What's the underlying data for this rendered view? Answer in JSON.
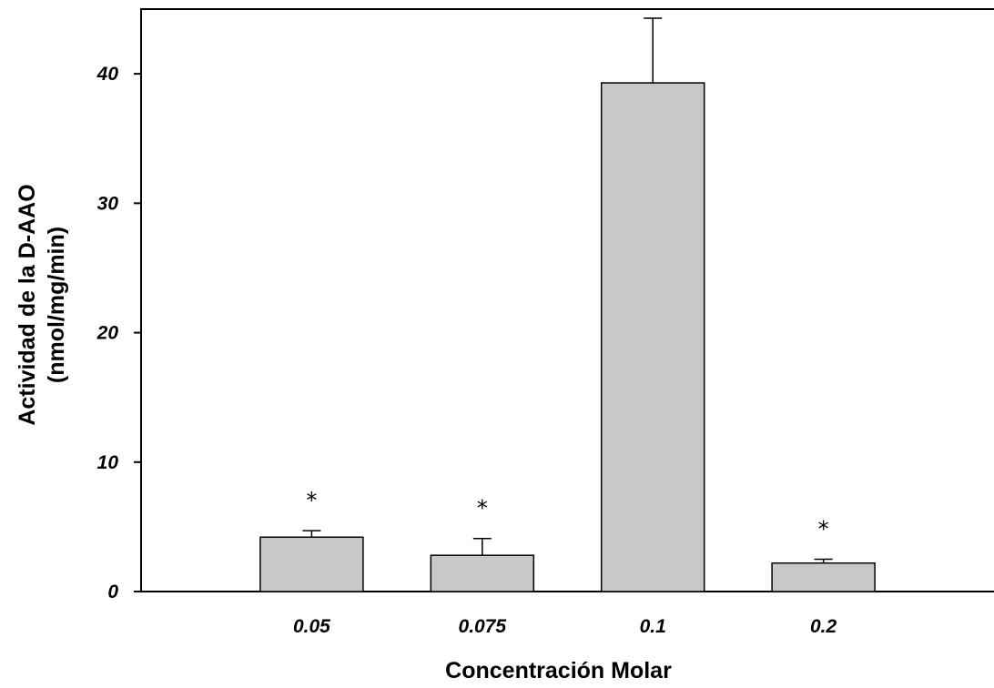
{
  "chart_data": {
    "type": "bar",
    "categories": [
      "0.05",
      "0.075",
      "0.1",
      "0.2"
    ],
    "values": [
      4.2,
      2.8,
      39.3,
      2.2
    ],
    "error_upper": [
      4.7,
      4.1,
      44.3,
      2.5
    ],
    "annotations": [
      "*",
      "*",
      "",
      "*"
    ],
    "xlabel": "Concentración Molar",
    "ylabel_line1": "Actividad de la D-AAO",
    "ylabel_line2": "(nmol/mg/min)",
    "ylim": [
      0,
      45
    ],
    "yticks": [
      0,
      10,
      20,
      30,
      40
    ],
    "ytick_labels": [
      "0",
      "10",
      "20",
      "30",
      "40"
    ],
    "grid": false,
    "legend": "none",
    "colors": {
      "bar_fill": "#c8c8c8",
      "bar_stroke": "#000000",
      "axis": "#000000"
    }
  }
}
